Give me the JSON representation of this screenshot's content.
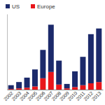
{
  "chart_data": {
    "type": "bar",
    "stacked": true,
    "legend": "upper left",
    "tick_labels": "x",
    "grid": false,
    "categories": [
      "2002",
      "2003",
      "2004",
      "2005",
      "2006",
      "2007",
      "2008",
      "2009",
      "2010",
      "2011",
      "2012",
      "2013"
    ],
    "series": [
      {
        "name": "US",
        "color": "#1c2a6b",
        "values": [
          6,
          10,
          16,
          27,
          45,
          75,
          38,
          7,
          25,
          45,
          78,
          85
        ]
      },
      {
        "name": "Europe",
        "color": "#e8161b",
        "values": [
          1,
          2,
          3,
          5,
          18,
          28,
          8,
          2,
          4,
          7,
          10,
          12
        ]
      }
    ],
    "ylim": [
      0,
      120
    ],
    "yticks": []
  }
}
